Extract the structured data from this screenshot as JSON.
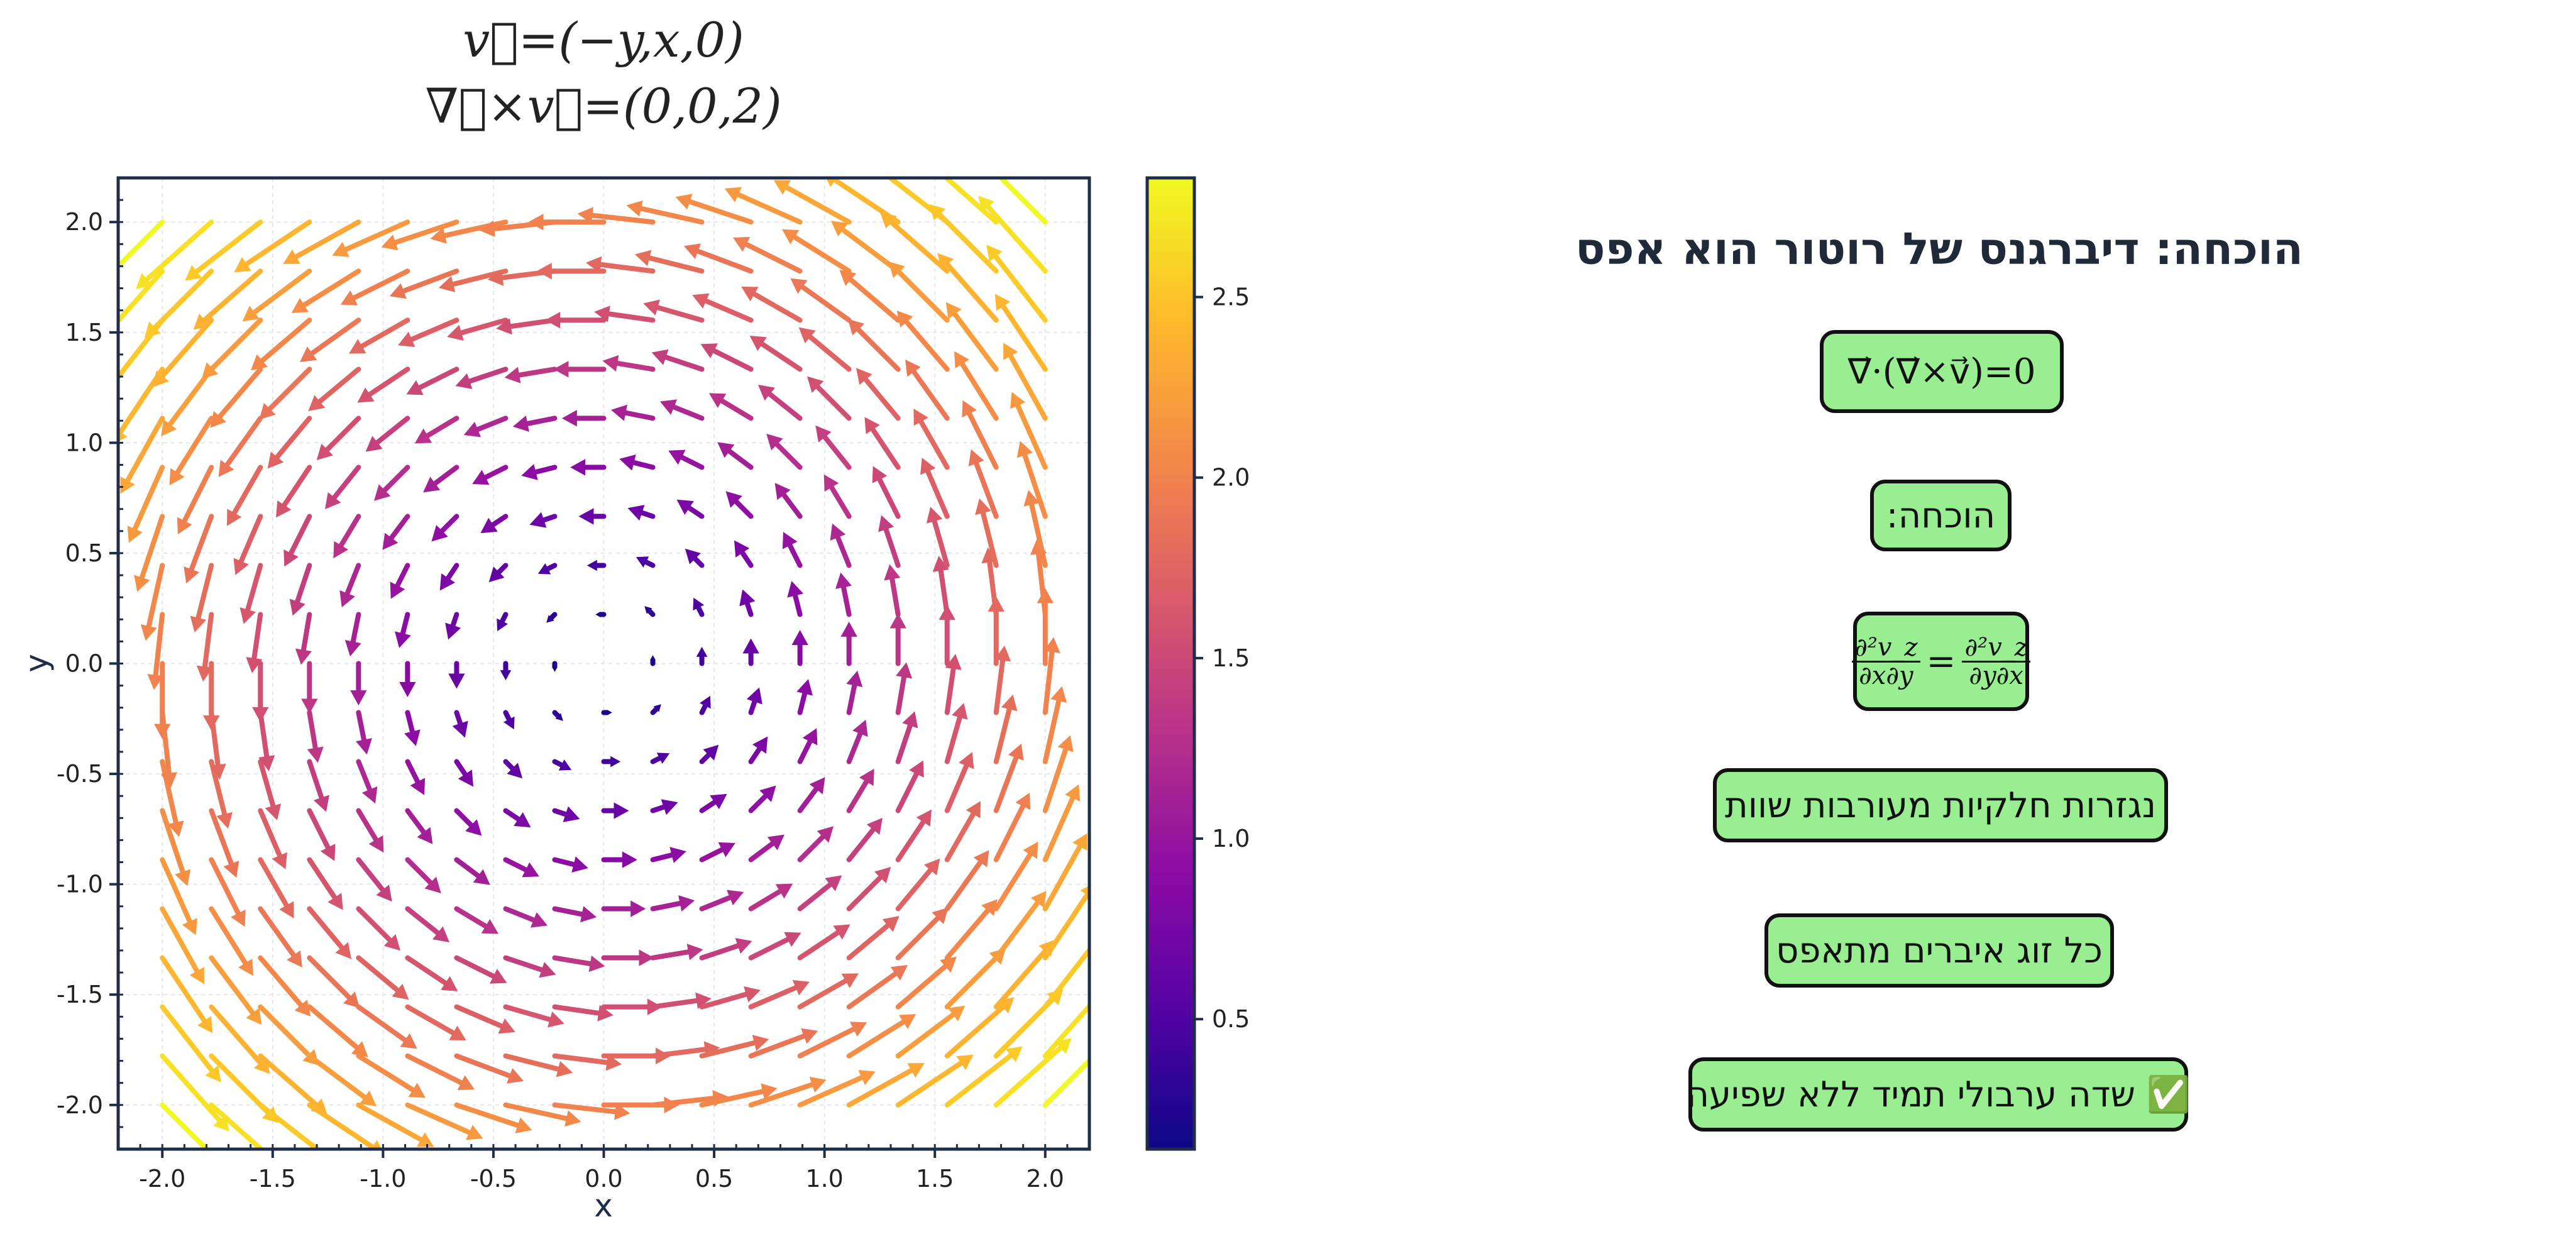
{
  "chart_data": {
    "type": "quiver",
    "field": {
      "vx": "-y",
      "vy": "x",
      "vz": "0"
    },
    "color_by": "magnitude",
    "colormap": "plasma",
    "x_range": [
      -2.0,
      2.0
    ],
    "y_range": [
      -2.0,
      2.0
    ],
    "grid_points": 19,
    "xlim": [
      -2.2,
      2.2
    ],
    "ylim": [
      -2.2,
      2.2
    ],
    "xticks": [
      -2.0,
      -1.5,
      -1.0,
      -0.5,
      0.0,
      0.5,
      1.0,
      1.5,
      2.0
    ],
    "yticks": [
      -2.0,
      -1.5,
      -1.0,
      -0.5,
      0.0,
      0.5,
      1.0,
      1.5,
      2.0
    ],
    "xtick_labels": [
      "-2.0",
      "-1.5",
      "-1.0",
      "-0.5",
      "0.0",
      "0.5",
      "1.0",
      "1.5",
      "2.0"
    ],
    "ytick_labels": [
      "-2.0",
      "-1.5",
      "-1.0",
      "-0.5",
      "0.0",
      "0.5",
      "1.0",
      "1.5",
      "2.0"
    ],
    "xlabel": "x",
    "ylabel": "y",
    "title_lines": [
      "v⃗=(−y,x,0)",
      "∇⃗×v⃗=(0,0,2)"
    ],
    "colorbar": {
      "min": 0.14,
      "max": 2.83,
      "ticks": [
        0.5,
        1.0,
        1.5,
        2.0,
        2.5
      ],
      "tick_labels": [
        "0.5",
        "1.0",
        "1.5",
        "2.0",
        "2.5"
      ]
    },
    "grid": true,
    "legend": false
  },
  "proof": {
    "title": "הוכחה: דיברגנס של רוטור הוא אפס",
    "identity": "∇⃗·(∇⃗×v⃗)=0",
    "proof_label": "הוכחה:",
    "mixed_left_num": "∂²v_z",
    "mixed_left_den": "∂x∂y",
    "mixed_equals": "=",
    "mixed_right_num": "∂²v_z",
    "mixed_right_den": "∂y∂x",
    "step_mixed_partials": "נגזרות חלקיות מעורבות שוות",
    "step_pairs_cancel": "כל זוג איברים מתאפס",
    "step_conclusion": "✅ שדה ערבולי תמיד ללא שפיעה"
  },
  "colors": {
    "box_fill": "#98ee90",
    "box_border": "#111111",
    "axis": "#1f2d4a",
    "title_text": "#1f2937"
  }
}
